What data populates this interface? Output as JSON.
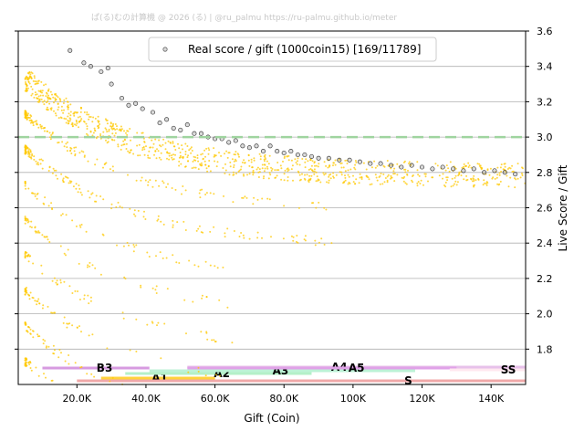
{
  "watermark": "ぱ(る)むの計算機 @ 2026 (る) | @ru_palmu  https://ru-palmu.github.io/meter",
  "colors": {
    "points": "#ffc800",
    "real_edge": "#444444",
    "grid": "#b0b0b0",
    "ref_line": "#9fd49f",
    "axis": "#000000"
  },
  "chart_data": {
    "type": "scatter",
    "title": "",
    "xlabel": "Gift (Coin)",
    "ylabel": "Live Score / Gift",
    "xlim": [
      3000,
      150000
    ],
    "ylim": [
      1.6,
      3.6
    ],
    "x_ticks": [
      {
        "value": 20000,
        "label": "20.0K"
      },
      {
        "value": 40000,
        "label": "40.0K"
      },
      {
        "value": 60000,
        "label": "60.0K"
      },
      {
        "value": 80000,
        "label": "80.0K"
      },
      {
        "value": 100000,
        "label": "100K"
      },
      {
        "value": 120000,
        "label": "120K"
      },
      {
        "value": 140000,
        "label": "140K"
      }
    ],
    "y_ticks": [
      {
        "value": 1.8,
        "label": "1.8"
      },
      {
        "value": 2.0,
        "label": "2.0"
      },
      {
        "value": 2.2,
        "label": "2.2"
      },
      {
        "value": 2.4,
        "label": "2.4"
      },
      {
        "value": 2.6,
        "label": "2.6"
      },
      {
        "value": 2.8,
        "label": "2.8"
      },
      {
        "value": 3.0,
        "label": "3.0"
      },
      {
        "value": 3.2,
        "label": "3.2"
      },
      {
        "value": 3.4,
        "label": "3.4"
      },
      {
        "value": 3.6,
        "label": "3.6"
      }
    ],
    "y_axis_side": "right",
    "grid": "horizontal",
    "reference_line": {
      "y": 3.0,
      "style": "dashed"
    },
    "legend": {
      "location": "top-center",
      "label": "Real score / gift (1000coin15) [169/11789]"
    },
    "bands": [
      {
        "start": 0.8,
        "end": 0.55
      },
      {
        "start": 1.2,
        "end": 0.56
      },
      {
        "start": 0.96,
        "end": 0.4
      },
      {
        "start": 0.8,
        "end": 0.35
      },
      {
        "start": 0.6,
        "end": 0.28
      },
      {
        "start": 0.4,
        "end": 0.2
      },
      {
        "start": 0.21,
        "end": 0.1
      },
      {
        "start": 0.0,
        "end": -0.15
      },
      {
        "start": -0.2,
        "end": -0.3
      },
      {
        "start": -0.4,
        "end": -0.45
      },
      {
        "start": -0.6,
        "end": -0.6
      },
      {
        "start": -0.8,
        "end": -0.8
      }
    ],
    "series": [
      {
        "label": "Real score / gift (1000coin15) [169/11789]",
        "points": [
          [
            18000,
            3.49
          ],
          [
            22000,
            3.42
          ],
          [
            24000,
            3.4
          ],
          [
            27000,
            3.37
          ],
          [
            29000,
            3.39
          ],
          [
            30000,
            3.3
          ],
          [
            33000,
            3.22
          ],
          [
            35000,
            3.18
          ],
          [
            37000,
            3.19
          ],
          [
            39000,
            3.16
          ],
          [
            42000,
            3.14
          ],
          [
            44000,
            3.08
          ],
          [
            46000,
            3.1
          ],
          [
            48000,
            3.05
          ],
          [
            50000,
            3.04
          ],
          [
            52000,
            3.07
          ],
          [
            54000,
            3.02
          ],
          [
            56000,
            3.02
          ],
          [
            58000,
            3.0
          ],
          [
            60000,
            2.99
          ],
          [
            62000,
            2.99
          ],
          [
            64000,
            2.97
          ],
          [
            66000,
            2.98
          ],
          [
            68000,
            2.95
          ],
          [
            70000,
            2.94
          ],
          [
            72000,
            2.95
          ],
          [
            74000,
            2.92
          ],
          [
            76000,
            2.95
          ],
          [
            78000,
            2.92
          ],
          [
            80000,
            2.91
          ],
          [
            82000,
            2.92
          ],
          [
            84000,
            2.9
          ],
          [
            86000,
            2.9
          ],
          [
            88000,
            2.89
          ],
          [
            90000,
            2.88
          ],
          [
            93000,
            2.88
          ],
          [
            96000,
            2.87
          ],
          [
            99000,
            2.87
          ],
          [
            102000,
            2.86
          ],
          [
            105000,
            2.85
          ],
          [
            108000,
            2.85
          ],
          [
            111000,
            2.84
          ],
          [
            114000,
            2.83
          ],
          [
            117000,
            2.84
          ],
          [
            120000,
            2.83
          ],
          [
            123000,
            2.82
          ],
          [
            126000,
            2.83
          ],
          [
            129000,
            2.82
          ],
          [
            132000,
            2.81
          ],
          [
            135000,
            2.82
          ],
          [
            138000,
            2.8
          ],
          [
            141000,
            2.81
          ],
          [
            144000,
            2.8
          ],
          [
            147000,
            2.79
          ]
        ]
      }
    ],
    "rank_labels": [
      {
        "label": "B3",
        "x": 10000,
        "x2": 41000,
        "color": "#d79be0"
      },
      {
        "label": "A1",
        "x": 27000,
        "x2": 60000,
        "color": "#ffd23c"
      },
      {
        "label": "A2",
        "x": 34000,
        "x2": 88000,
        "color": "#b5f0c8"
      },
      {
        "label": "A3",
        "x": 41000,
        "x2": 118000,
        "color": "#bdf2d6"
      },
      {
        "label": "A4",
        "x": 52000,
        "x2": 150000,
        "color": "#e7c1ea"
      },
      {
        "label": "A5",
        "x": 52000,
        "x2": 130000,
        "color": "#e0a2e8"
      },
      {
        "label": "S",
        "x": 20000,
        "x2": 150000,
        "color": "#f0a8a8"
      },
      {
        "label": "SS",
        "x": 128000,
        "x2": 150000,
        "color": "#ffe8f0"
      }
    ],
    "rank_label_text_x": {
      "B3": 28000,
      "A1": 44000,
      "A2": 62000,
      "A3": 79000,
      "A4": 96000,
      "A5": 101000,
      "S": 116000,
      "SS": 145000
    }
  }
}
